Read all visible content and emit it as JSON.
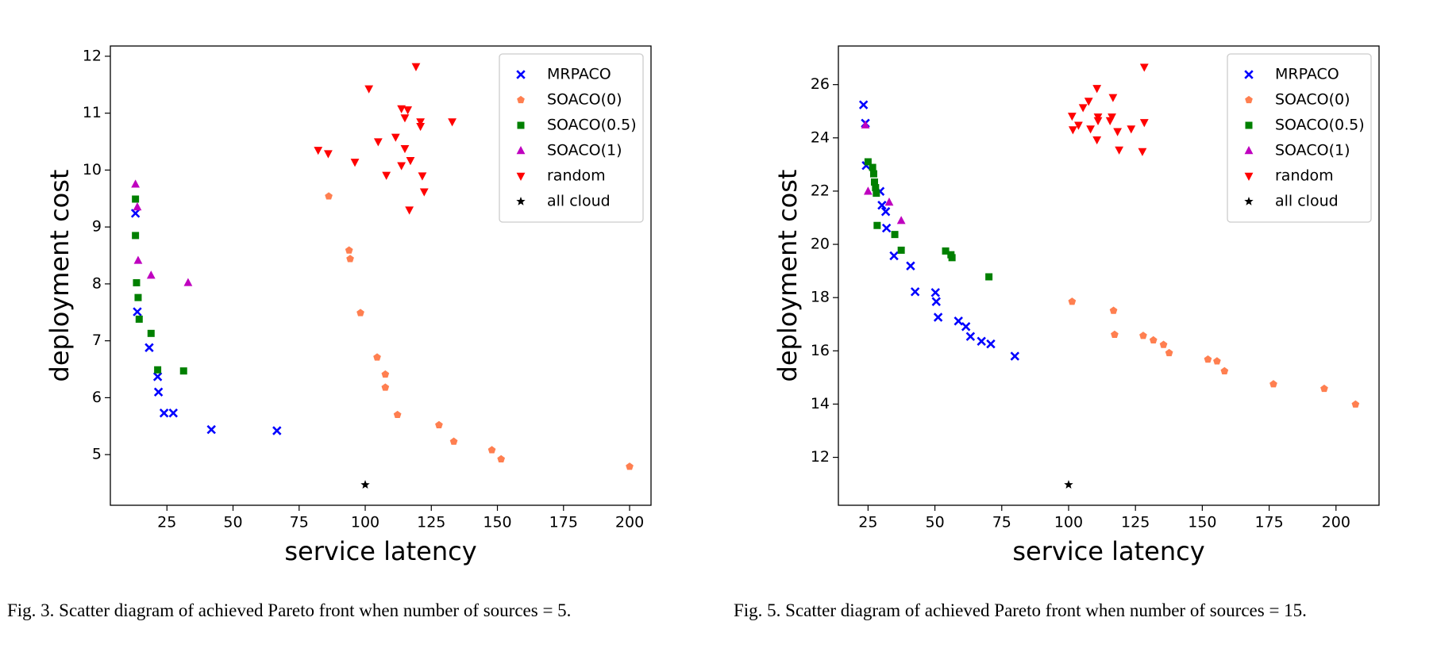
{
  "chart_data": [
    {
      "type": "scatter",
      "xlabel": "service latency",
      "ylabel": "deployment cost",
      "xlim": [
        3.6,
        208.1
      ],
      "ylim": [
        4.11,
        12.18
      ],
      "xticks": [
        25,
        50,
        75,
        100,
        125,
        150,
        175,
        200
      ],
      "yticks": [
        5,
        6,
        7,
        8,
        9,
        10,
        11,
        12
      ],
      "legend": "upper right",
      "caption": "Fig. 3.   Scatter diagram of achieved Pareto front when number of sources = 5.",
      "series": [
        {
          "name": "MRPACO",
          "color": "#0000ff",
          "marker": "x",
          "x": [
            13.1,
            13.8,
            18.3,
            21.5,
            21.8,
            23.9,
            27.4,
            41.8,
            66.6
          ],
          "values": [
            9.24,
            7.51,
            6.88,
            6.37,
            6.1,
            5.73,
            5.73,
            5.44,
            5.42
          ]
        },
        {
          "name": "SOACO(0)",
          "color": "#ff7f50",
          "marker": "pentagon",
          "x": [
            86.2,
            93.9,
            94.3,
            98.2,
            104.5,
            107.6,
            107.6,
            112.2,
            127.9,
            133.5,
            147.9,
            151.4,
            200.0
          ],
          "values": [
            9.54,
            8.59,
            8.44,
            7.49,
            6.71,
            6.41,
            6.18,
            5.7,
            5.52,
            5.23,
            5.08,
            4.92,
            4.79
          ]
        },
        {
          "name": "SOACO(0.5)",
          "color": "#008000",
          "marker": "square",
          "x": [
            13.1,
            13.1,
            13.5,
            14.1,
            14.5,
            19.0,
            21.5,
            31.3
          ],
          "values": [
            9.49,
            8.85,
            8.02,
            7.76,
            7.38,
            7.13,
            6.49,
            6.47
          ]
        },
        {
          "name": "SOACO(1)",
          "color": "#bf00bf",
          "marker": "triangle-up",
          "x": [
            13.1,
            13.8,
            14.1,
            19.0,
            33.0
          ],
          "values": [
            9.75,
            9.35,
            8.41,
            8.15,
            8.02
          ]
        },
        {
          "name": "random",
          "color": "#ff0000",
          "marker": "triangle-down",
          "x": [
            82.2,
            86.0,
            96.1,
            101.4,
            104.9,
            108.0,
            111.5,
            113.7,
            113.7,
            115.0,
            115.0,
            116.1,
            117.1,
            116.7,
            119.2,
            120.9,
            120.9,
            121.6,
            122.3,
            132.9
          ],
          "values": [
            10.35,
            10.29,
            10.14,
            11.43,
            10.5,
            9.91,
            10.58,
            11.08,
            10.08,
            10.92,
            10.38,
            11.06,
            10.17,
            9.3,
            11.82,
            10.85,
            10.77,
            9.9,
            9.62,
            10.85
          ]
        },
        {
          "name": "all cloud",
          "color": "#000000",
          "marker": "star",
          "x": [
            100
          ],
          "values": [
            4.47
          ]
        }
      ]
    },
    {
      "type": "scatter",
      "xlabel": "service latency",
      "ylabel": "deployment cost",
      "xlim": [
        13.9,
        216.1
      ],
      "ylim": [
        10.2,
        27.45
      ],
      "xticks": [
        25,
        50,
        75,
        100,
        125,
        150,
        175,
        200
      ],
      "yticks": [
        12,
        14,
        16,
        18,
        20,
        22,
        24,
        26
      ],
      "legend": "upper right",
      "caption": "Fig. 5.   Scatter diagram of achieved Pareto front when number of sources = 15.",
      "series": [
        {
          "name": "MRPACO",
          "color": "#0000ff",
          "marker": "x",
          "x": [
            23.3,
            24.0,
            24.3,
            29.5,
            30.2,
            31.6,
            31.9,
            34.7,
            40.9,
            42.6,
            50.2,
            50.5,
            51.2,
            58.8,
            61.6,
            63.3,
            67.4,
            70.9,
            79.9
          ],
          "values": [
            25.24,
            24.55,
            22.96,
            21.99,
            21.47,
            21.23,
            20.61,
            19.57,
            19.19,
            18.22,
            18.19,
            17.85,
            17.26,
            17.12,
            16.91,
            16.54,
            16.36,
            16.26,
            15.8
          ]
        },
        {
          "name": "SOACO(0)",
          "color": "#ff7f50",
          "marker": "pentagon",
          "x": [
            101.3,
            116.8,
            117.2,
            127.9,
            131.7,
            135.5,
            137.6,
            152.1,
            155.5,
            158.3,
            176.6,
            195.6,
            207.3
          ],
          "values": [
            17.85,
            17.51,
            16.61,
            16.57,
            16.4,
            16.23,
            15.92,
            15.68,
            15.61,
            15.24,
            14.75,
            14.58,
            13.99
          ]
        },
        {
          "name": "SOACO(0.5)",
          "color": "#008000",
          "marker": "square",
          "x": [
            25.0,
            26.7,
            27.1,
            27.4,
            27.8,
            28.1,
            28.4,
            35.0,
            37.4,
            54.0,
            56.0,
            56.4,
            70.2
          ],
          "values": [
            23.1,
            22.89,
            22.65,
            22.34,
            22.13,
            21.92,
            20.71,
            20.37,
            19.78,
            19.75,
            19.61,
            19.5,
            18.78
          ]
        },
        {
          "name": "SOACO(1)",
          "color": "#bf00bf",
          "marker": "triangle-up",
          "x": [
            24.0,
            25.0,
            32.9,
            37.4
          ],
          "values": [
            24.48,
            21.99,
            21.58,
            20.89
          ]
        },
        {
          "name": "random",
          "color": "#ff0000",
          "marker": "triangle-down",
          "x": [
            101.3,
            101.6,
            103.7,
            105.4,
            107.5,
            108.2,
            110.6,
            111.0,
            111.0,
            110.6,
            115.5,
            116.2,
            116.6,
            118.3,
            118.9,
            123.4,
            127.6,
            128.3,
            128.3
          ],
          "values": [
            24.82,
            24.31,
            24.48,
            25.14,
            25.38,
            24.34,
            25.86,
            24.79,
            24.65,
            23.93,
            24.65,
            24.79,
            25.52,
            24.24,
            23.55,
            24.34,
            23.49,
            24.58,
            26.66
          ]
        },
        {
          "name": "all cloud",
          "color": "#000000",
          "marker": "star",
          "x": [
            100
          ],
          "values": [
            10.97
          ]
        }
      ]
    }
  ]
}
